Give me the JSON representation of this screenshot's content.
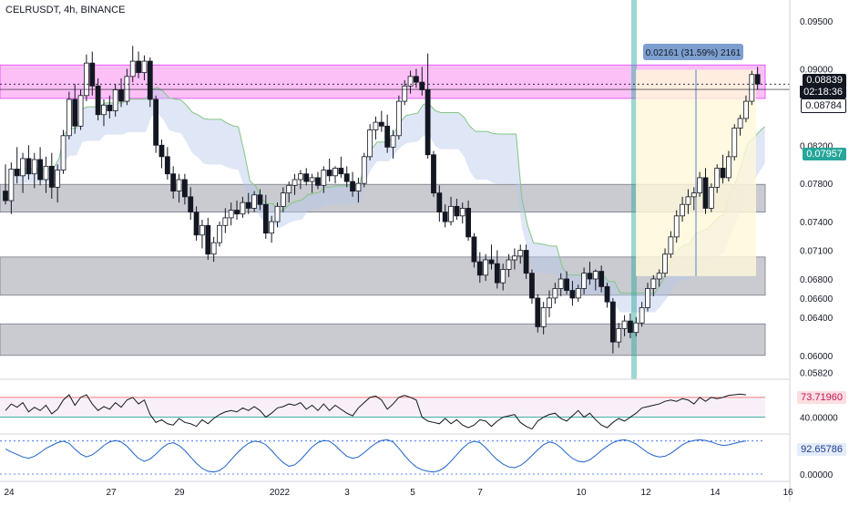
{
  "header": {
    "title": "CELRUSDT, 4h, BINANCE"
  },
  "price_axis": {
    "ticks": [
      "0.09500",
      "0.09000",
      "0.08200",
      "0.07800",
      "0.07400",
      "0.07100",
      "0.06800",
      "0.06600",
      "0.06400",
      "0.06000",
      "0.05820"
    ]
  },
  "tags": {
    "current_price": "0.08839",
    "countdown": "02:18:36",
    "line_a": "0.08784",
    "cloud": "0.07957",
    "rsi": "73.71960",
    "rsi_level": "40.00000",
    "stoch": "92.65786",
    "stoch_zero": "0.00000"
  },
  "measure": {
    "label": "0.02161 (31.59%) 2161"
  },
  "time_axis": [
    "24",
    "27",
    "29",
    "2022",
    "3",
    "5",
    "7",
    "10",
    "12",
    "14",
    "16"
  ],
  "colors": {
    "bull": "#ffffff",
    "bear": "#131722",
    "pink_zone": "#f98cf0",
    "grey_zone": "#b2b5be",
    "cloud": "#b7c7ea",
    "cloud_line": "#81c784",
    "measure_fill": "#fff8d9",
    "measure_tag": "#7d9fd0",
    "vline": "#26a69a",
    "rsi_line": "#131722",
    "rsi_over": "#ef5350",
    "stoch_line": "#1e63c6",
    "current_tag": "#131722",
    "cloud_tag": "#26a69a",
    "rsi_tag": "#fcdde0",
    "stoch_tag": "#e3ecfb"
  },
  "chart_data": {
    "type": "candlestick",
    "title": "CELRUSDT, 4h, BINANCE",
    "ylim": [
      0.0575,
      0.0972
    ],
    "price_ticks": [
      0.095,
      0.09,
      0.082,
      0.078,
      0.074,
      0.071,
      0.068,
      0.066,
      0.064,
      0.06,
      0.0582
    ],
    "zones": [
      {
        "kind": "resistance",
        "top": 0.0904,
        "bottom": 0.0869
      },
      {
        "kind": "support",
        "top": 0.0779,
        "bottom": 0.075
      },
      {
        "kind": "support",
        "top": 0.0703,
        "bottom": 0.0663
      },
      {
        "kind": "support",
        "top": 0.0633,
        "bottom": 0.06
      }
    ],
    "measurement": {
      "from": 0.0683,
      "to": 0.0899,
      "change": 0.02161,
      "percent": 31.59,
      "ticks": 2161
    },
    "candles": [
      [
        0.0772,
        0.08,
        0.0758,
        0.0762
      ],
      [
        0.0762,
        0.0802,
        0.0748,
        0.0795
      ],
      [
        0.0795,
        0.0818,
        0.078,
        0.0788
      ],
      [
        0.0788,
        0.0812,
        0.077,
        0.0806
      ],
      [
        0.0806,
        0.082,
        0.0784,
        0.079
      ],
      [
        0.079,
        0.0812,
        0.0775,
        0.0805
      ],
      [
        0.0805,
        0.0818,
        0.0778,
        0.0784
      ],
      [
        0.0784,
        0.0808,
        0.077,
        0.0798
      ],
      [
        0.0798,
        0.0812,
        0.0764,
        0.0776
      ],
      [
        0.0776,
        0.08,
        0.076,
        0.0794
      ],
      [
        0.0794,
        0.0836,
        0.079,
        0.083
      ],
      [
        0.083,
        0.0876,
        0.0826,
        0.0868
      ],
      [
        0.0868,
        0.0884,
        0.0832,
        0.084
      ],
      [
        0.084,
        0.0878,
        0.0836,
        0.0872
      ],
      [
        0.0872,
        0.0915,
        0.0866,
        0.0906
      ],
      [
        0.0906,
        0.0918,
        0.0872,
        0.0882
      ],
      [
        0.0882,
        0.089,
        0.0846,
        0.0852
      ],
      [
        0.0852,
        0.0868,
        0.084,
        0.0862
      ],
      [
        0.0862,
        0.0872,
        0.0848,
        0.0856
      ],
      [
        0.0856,
        0.0884,
        0.085,
        0.0878
      ],
      [
        0.0878,
        0.089,
        0.086,
        0.0866
      ],
      [
        0.0866,
        0.09,
        0.0862,
        0.0892
      ],
      [
        0.0892,
        0.0924,
        0.0886,
        0.0908
      ],
      [
        0.0908,
        0.0918,
        0.089,
        0.0896
      ],
      [
        0.0896,
        0.0914,
        0.0888,
        0.0908
      ],
      [
        0.0908,
        0.0912,
        0.086,
        0.0868
      ],
      [
        0.0868,
        0.0872,
        0.0812,
        0.082
      ],
      [
        0.082,
        0.0826,
        0.0796,
        0.0808
      ],
      [
        0.0808,
        0.0818,
        0.0784,
        0.079
      ],
      [
        0.079,
        0.0798,
        0.0764,
        0.0772
      ],
      [
        0.0772,
        0.079,
        0.076,
        0.0784
      ],
      [
        0.0784,
        0.079,
        0.0758,
        0.0766
      ],
      [
        0.0766,
        0.0776,
        0.0742,
        0.075
      ],
      [
        0.075,
        0.0756,
        0.072,
        0.0726
      ],
      [
        0.0726,
        0.0742,
        0.0712,
        0.0736
      ],
      [
        0.0736,
        0.0744,
        0.07,
        0.0706
      ],
      [
        0.0706,
        0.0724,
        0.0698,
        0.0718
      ],
      [
        0.0718,
        0.074,
        0.0714,
        0.0736
      ],
      [
        0.0736,
        0.0754,
        0.0728,
        0.0744
      ],
      [
        0.0744,
        0.076,
        0.0736,
        0.0752
      ],
      [
        0.0752,
        0.0762,
        0.0742,
        0.0748
      ],
      [
        0.0748,
        0.0766,
        0.0744,
        0.076
      ],
      [
        0.076,
        0.077,
        0.0748,
        0.0754
      ],
      [
        0.0754,
        0.0772,
        0.075,
        0.0768
      ],
      [
        0.0768,
        0.0774,
        0.0752,
        0.0758
      ],
      [
        0.0758,
        0.0768,
        0.0722,
        0.0728
      ],
      [
        0.0728,
        0.0746,
        0.0718,
        0.074
      ],
      [
        0.074,
        0.076,
        0.0734,
        0.0756
      ],
      [
        0.0756,
        0.0776,
        0.075,
        0.077
      ],
      [
        0.077,
        0.0782,
        0.076,
        0.0778
      ],
      [
        0.0778,
        0.079,
        0.0768,
        0.0784
      ],
      [
        0.0784,
        0.0794,
        0.0774,
        0.079
      ],
      [
        0.079,
        0.0796,
        0.0778,
        0.0782
      ],
      [
        0.0782,
        0.079,
        0.077,
        0.0786
      ],
      [
        0.0786,
        0.0792,
        0.0774,
        0.0778
      ],
      [
        0.0778,
        0.0798,
        0.077,
        0.0794
      ],
      [
        0.0794,
        0.0806,
        0.0782,
        0.0788
      ],
      [
        0.0788,
        0.0798,
        0.078,
        0.0796
      ],
      [
        0.0796,
        0.0808,
        0.0786,
        0.079
      ],
      [
        0.079,
        0.0798,
        0.0776,
        0.0782
      ],
      [
        0.0782,
        0.0792,
        0.0766,
        0.0772
      ],
      [
        0.0772,
        0.0786,
        0.076,
        0.078
      ],
      [
        0.078,
        0.0812,
        0.0776,
        0.0808
      ],
      [
        0.0808,
        0.0842,
        0.0804,
        0.0836
      ],
      [
        0.0836,
        0.085,
        0.0826,
        0.0844
      ],
      [
        0.0844,
        0.0856,
        0.0834,
        0.084
      ],
      [
        0.084,
        0.0852,
        0.0812,
        0.0818
      ],
      [
        0.0818,
        0.0836,
        0.0806,
        0.083
      ],
      [
        0.083,
        0.0872,
        0.0826,
        0.0866
      ],
      [
        0.0866,
        0.0888,
        0.0862,
        0.0882
      ],
      [
        0.0882,
        0.0898,
        0.0874,
        0.0892
      ],
      [
        0.0892,
        0.09,
        0.088,
        0.0886
      ],
      [
        0.0886,
        0.0902,
        0.0872,
        0.0878
      ],
      [
        0.0878,
        0.0916,
        0.0806,
        0.081
      ],
      [
        0.081,
        0.0814,
        0.0766,
        0.077
      ],
      [
        0.077,
        0.0778,
        0.074,
        0.075
      ],
      [
        0.075,
        0.0758,
        0.0734,
        0.074
      ],
      [
        0.074,
        0.0766,
        0.0736,
        0.0756
      ],
      [
        0.0756,
        0.0764,
        0.0742,
        0.0746
      ],
      [
        0.0746,
        0.076,
        0.0738,
        0.0754
      ],
      [
        0.0754,
        0.0762,
        0.072,
        0.0724
      ],
      [
        0.0724,
        0.0728,
        0.0692,
        0.0698
      ],
      [
        0.0698,
        0.0708,
        0.0676,
        0.0684
      ],
      [
        0.0684,
        0.0706,
        0.0678,
        0.07
      ],
      [
        0.07,
        0.0716,
        0.069,
        0.0696
      ],
      [
        0.0696,
        0.071,
        0.067,
        0.0676
      ],
      [
        0.0676,
        0.0696,
        0.0668,
        0.069
      ],
      [
        0.069,
        0.0706,
        0.0682,
        0.07
      ],
      [
        0.07,
        0.0712,
        0.069,
        0.0704
      ],
      [
        0.0704,
        0.0716,
        0.0696,
        0.071
      ],
      [
        0.071,
        0.0716,
        0.068,
        0.0686
      ],
      [
        0.0686,
        0.069,
        0.0654,
        0.066
      ],
      [
        0.066,
        0.0664,
        0.0624,
        0.063
      ],
      [
        0.063,
        0.0656,
        0.0622,
        0.065
      ],
      [
        0.065,
        0.0668,
        0.064,
        0.066
      ],
      [
        0.066,
        0.0676,
        0.0654,
        0.067
      ],
      [
        0.067,
        0.0686,
        0.0662,
        0.068
      ],
      [
        0.068,
        0.0688,
        0.0664,
        0.0668
      ],
      [
        0.0668,
        0.0678,
        0.0652,
        0.066
      ],
      [
        0.066,
        0.0674,
        0.0656,
        0.067
      ],
      [
        0.067,
        0.0692,
        0.0664,
        0.0686
      ],
      [
        0.0686,
        0.0698,
        0.0674,
        0.068
      ],
      [
        0.068,
        0.069,
        0.0668,
        0.0688
      ],
      [
        0.0688,
        0.0694,
        0.0666,
        0.0672
      ],
      [
        0.0672,
        0.0676,
        0.065,
        0.0656
      ],
      [
        0.0656,
        0.066,
        0.0602,
        0.0614
      ],
      [
        0.0614,
        0.0634,
        0.0608,
        0.0628
      ],
      [
        0.0628,
        0.0642,
        0.062,
        0.0636
      ],
      [
        0.0636,
        0.0644,
        0.0618,
        0.0624
      ],
      [
        0.0624,
        0.064,
        0.062,
        0.0634
      ],
      [
        0.0634,
        0.0656,
        0.063,
        0.065
      ],
      [
        0.065,
        0.0676,
        0.0646,
        0.067
      ],
      [
        0.067,
        0.0684,
        0.0662,
        0.068
      ],
      [
        0.068,
        0.069,
        0.0672,
        0.0686
      ],
      [
        0.0686,
        0.0712,
        0.0682,
        0.0706
      ],
      [
        0.0706,
        0.073,
        0.0702,
        0.0724
      ],
      [
        0.0724,
        0.0752,
        0.0718,
        0.0746
      ],
      [
        0.0746,
        0.0766,
        0.074,
        0.0758
      ],
      [
        0.0758,
        0.0774,
        0.0748,
        0.0766
      ],
      [
        0.0766,
        0.0776,
        0.0752,
        0.077
      ],
      [
        0.077,
        0.0792,
        0.0766,
        0.0786
      ],
      [
        0.0786,
        0.0796,
        0.0748,
        0.0754
      ],
      [
        0.0754,
        0.078,
        0.075,
        0.0776
      ],
      [
        0.0776,
        0.08,
        0.077,
        0.0796
      ],
      [
        0.0796,
        0.081,
        0.078,
        0.0786
      ],
      [
        0.0786,
        0.0814,
        0.0782,
        0.0808
      ],
      [
        0.0808,
        0.0842,
        0.0804,
        0.0838
      ],
      [
        0.0838,
        0.0852,
        0.083,
        0.0848
      ],
      [
        0.0848,
        0.0872,
        0.0844,
        0.0866
      ],
      [
        0.0866,
        0.0898,
        0.0862,
        0.0894
      ],
      [
        0.0894,
        0.0902,
        0.0878,
        0.0884
      ]
    ],
    "rsi": {
      "values": [
        50,
        60,
        55,
        62,
        48,
        55,
        50,
        58,
        45,
        52,
        66,
        74,
        58,
        70,
        74,
        60,
        50,
        56,
        52,
        62,
        55,
        66,
        70,
        60,
        66,
        44,
        32,
        36,
        30,
        28,
        38,
        32,
        30,
        26,
        36,
        30,
        38,
        44,
        48,
        50,
        48,
        54,
        50,
        56,
        50,
        40,
        46,
        54,
        56,
        60,
        58,
        62,
        52,
        58,
        50,
        60,
        50,
        58,
        52,
        46,
        42,
        54,
        62,
        70,
        72,
        66,
        52,
        60,
        70,
        73,
        70,
        66,
        40,
        34,
        32,
        30,
        38,
        30,
        36,
        28,
        24,
        28,
        36,
        34,
        26,
        34,
        40,
        42,
        44,
        32,
        26,
        22,
        34,
        40,
        44,
        46,
        38,
        34,
        42,
        50,
        40,
        46,
        36,
        28,
        24,
        32,
        38,
        34,
        40,
        46,
        54,
        56,
        58,
        60,
        64,
        66,
        64,
        68,
        66,
        60,
        70,
        64,
        70,
        68,
        70,
        73,
        74,
        75,
        73.7
      ],
      "levels": [
        70,
        40
      ],
      "ticks": [
        40
      ]
    },
    "stoch": {
      "values": [
        70,
        62,
        55,
        48,
        44,
        50,
        60,
        72,
        80,
        88,
        92,
        86,
        70,
        56,
        48,
        54,
        66,
        80,
        90,
        94,
        90,
        78,
        60,
        44,
        36,
        42,
        56,
        72,
        84,
        88,
        80,
        66,
        48,
        30,
        16,
        8,
        6,
        10,
        22,
        40,
        58,
        74,
        86,
        92,
        90,
        82,
        66,
        48,
        32,
        22,
        26,
        40,
        58,
        76,
        88,
        94,
        92,
        80,
        64,
        50,
        44,
        48,
        60,
        74,
        86,
        94,
        96,
        90,
        72,
        52,
        34,
        20,
        12,
        8,
        6,
        10,
        20,
        36,
        54,
        72,
        86,
        92,
        88,
        74,
        56,
        40,
        28,
        20,
        18,
        24,
        36,
        52,
        68,
        82,
        90,
        86,
        74,
        58,
        44,
        36,
        34,
        40,
        52,
        66,
        78,
        88,
        94,
        96,
        92,
        84,
        72,
        60,
        52,
        48,
        50,
        58,
        70,
        82,
        90,
        94,
        96,
        94,
        90,
        84,
        80,
        82,
        86,
        90,
        92.7
      ],
      "levels": [
        92.65786,
        0
      ],
      "ticks": [
        0
      ]
    }
  }
}
